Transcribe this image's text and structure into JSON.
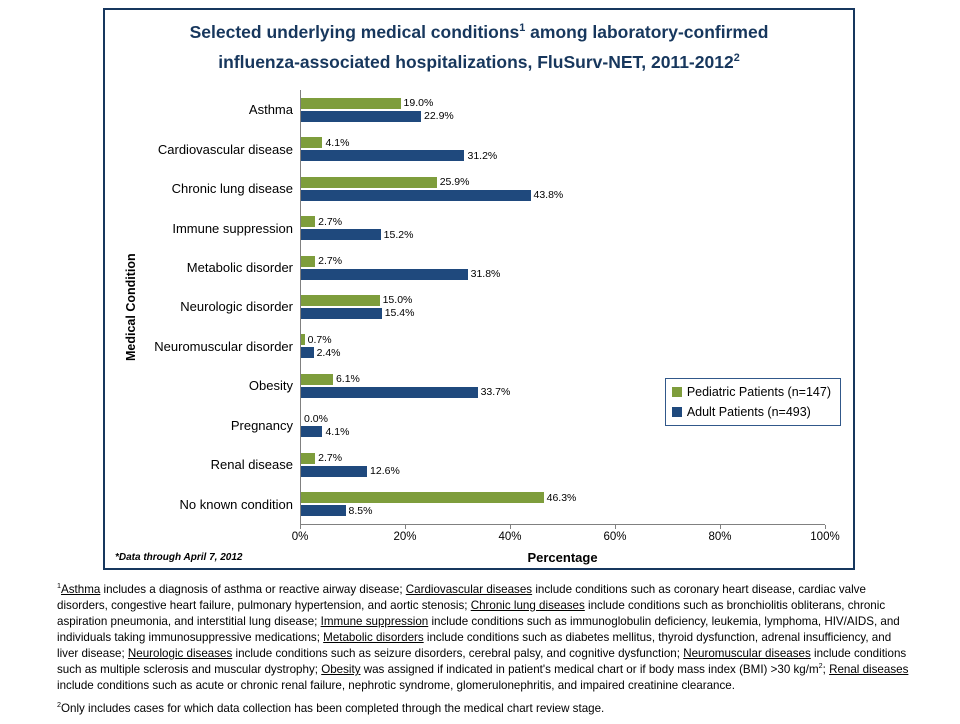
{
  "chart": {
    "title_segments": [
      {
        "text": "Selected underlying medical conditions"
      },
      {
        "text": "1",
        "sup": true
      },
      {
        "text": " among laboratory-confirmed"
      },
      {
        "br": true
      },
      {
        "text": "influenza-associated hospitalizations, FluSurv-NET, 2011-2012"
      },
      {
        "text": "2",
        "sup": true
      }
    ],
    "data_note": "*Data through April 7, 2012"
  },
  "chart_data": {
    "type": "bar",
    "orientation": "horizontal",
    "title": "Selected underlying medical conditions among laboratory-confirmed influenza-associated hospitalizations, FluSurv-NET, 2011-2012",
    "xlabel": "Percentage",
    "ylabel": "Medical Condition",
    "xlim": [
      0,
      100
    ],
    "x_ticks": [
      "0%",
      "20%",
      "40%",
      "60%",
      "80%",
      "100%"
    ],
    "grid": false,
    "legend_position": "middle-right",
    "value_labels": "one-decimal-percent",
    "categories": [
      "Asthma",
      "Cardiovascular disease",
      "Chronic lung disease",
      "Immune suppression",
      "Metabolic disorder",
      "Neurologic disorder",
      "Neuromuscular disorder",
      "Obesity",
      "Pregnancy",
      "Renal disease",
      "No known condition"
    ],
    "series": [
      {
        "name": "Pediatric Patients (n=147)",
        "color": "#7E9D3C",
        "values": [
          19.0,
          4.1,
          25.9,
          2.7,
          2.7,
          15.0,
          0.7,
          6.1,
          0.0,
          2.7,
          46.3
        ]
      },
      {
        "name": "Adult Patients (n=493)",
        "color": "#1F497D",
        "values": [
          22.9,
          31.2,
          43.8,
          15.2,
          31.8,
          15.4,
          2.4,
          33.7,
          4.1,
          12.6,
          8.5
        ]
      }
    ]
  },
  "footnotes": {
    "note1_segments": [
      {
        "text": "1",
        "sup": true
      },
      {
        "text": "Asthma",
        "u": true
      },
      {
        "text": " includes a diagnosis of asthma or reactive airway disease; "
      },
      {
        "text": "Cardiovascular diseases",
        "u": true
      },
      {
        "text": " include conditions such as coronary heart disease, cardiac valve disorders, congestive heart failure, pulmonary hypertension, and aortic stenosis; "
      },
      {
        "text": "Chronic lung diseases",
        "u": true
      },
      {
        "text": " include conditions such as bronchiolitis obliterans, chronic aspiration pneumonia, and interstitial lung disease; "
      },
      {
        "text": "Immune suppression",
        "u": true
      },
      {
        "text": " include conditions such as immunoglobulin deficiency, leukemia, lymphoma, HIV/AIDS,  and individuals taking immunosuppressive medications; "
      },
      {
        "text": "Metabolic disorders",
        "u": true
      },
      {
        "text": " include conditions such as diabetes mellitus, thyroid dysfunction, adrenal insufficiency, and liver disease; "
      },
      {
        "text": "Neurologic diseases",
        "u": true
      },
      {
        "text": " include conditions such as seizure disorders, cerebral palsy, and cognitive dysfunction; "
      },
      {
        "text": "Neuromuscular diseases",
        "u": true
      },
      {
        "text": " include conditions such as multiple sclerosis and muscular dystrophy; "
      },
      {
        "text": "Obesity",
        "u": true
      },
      {
        "text": " was assigned if indicated in patient's medical chart or if body mass index (BMI)  >30 kg/m"
      },
      {
        "text": "2",
        "sup": true
      },
      {
        "text": ";  "
      },
      {
        "text": "Renal diseases",
        "u": true
      },
      {
        "text": " include conditions such as acute or chronic renal failure, nephrotic syndrome, glomerulonephritis, and impaired creatinine clearance."
      }
    ],
    "note2_segments": [
      {
        "text": "2",
        "sup": true
      },
      {
        "text": "Only includes cases for which data collection has been completed through the medical chart review stage."
      }
    ]
  },
  "colors": {
    "title": "#17375D",
    "chart_border": "#17375E",
    "axis": "#808080",
    "legend_border": "#31588A",
    "pediatric_green": "#7E9D3C",
    "adult_blue": "#1F497D"
  }
}
